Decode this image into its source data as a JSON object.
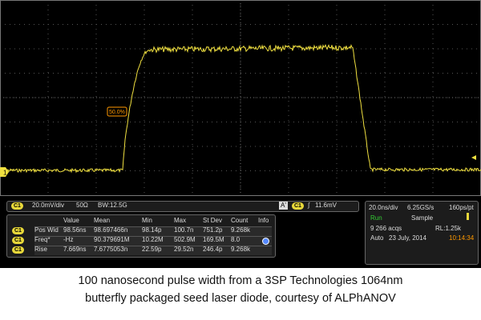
{
  "screen": {
    "marker": "1",
    "reference_label": "50.0%",
    "channel": {
      "badge": "C1",
      "scale": "20.0mV/div",
      "impedance": "50Ω",
      "bandwidth": "BW:12.5G"
    },
    "trigger": {
      "mode": "A'",
      "badge": "C1",
      "slope": "∫",
      "level": "11.6mV"
    },
    "acquisition": {
      "timebase": "20.0ns/div",
      "rate": "6.25GS/s",
      "resolution": "160ps/pt",
      "state": "Run",
      "mode": "Sample",
      "acqs": "9 266 acqs",
      "record": "RL:1.25k",
      "trigger_mode": "Auto",
      "date": "23 July, 2014",
      "time": "10:14:34"
    },
    "measurements": {
      "headers": [
        "Value",
        "Mean",
        "Min",
        "Max",
        "St Dev",
        "Count",
        "Info"
      ],
      "rows": [
        [
          "C1",
          "Pos Wid",
          "98.56ns",
          "98.697466n",
          "98.14p",
          "100.7n",
          "751.2p",
          "9.268k"
        ],
        [
          "C1",
          "Freq*",
          "-Hz",
          "90.379691M",
          "10.22M",
          "502.9M",
          "169.5M",
          "8.0"
        ],
        [
          "C1",
          "Rise",
          "7.669ns",
          "7.6775053n",
          "22.59p",
          "29.52n",
          "246.4p",
          "9.268k"
        ]
      ]
    }
  },
  "caption": {
    "line1": "100 nanosecond pulse width from a 3SP Technologies 1064nm",
    "line2": "butterfly packaged seed laser diode, courtesy of ALPhANOV"
  }
}
